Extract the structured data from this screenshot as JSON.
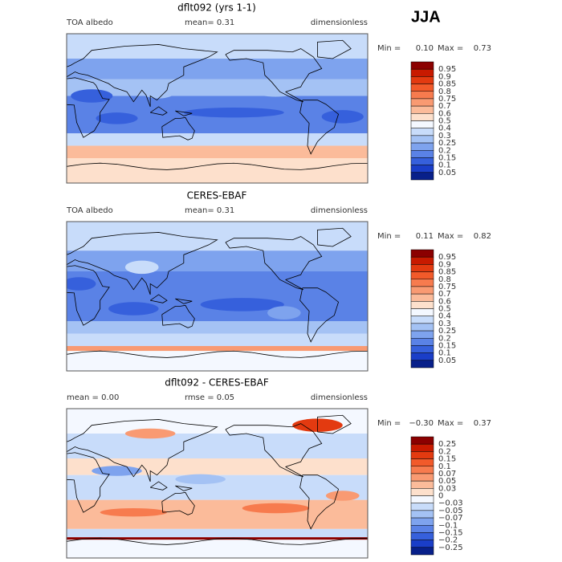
{
  "season": "JJA",
  "panels": [
    {
      "title": "dflt092 (yrs 1-1)",
      "left": "TOA albedo",
      "center": "mean=   0.31",
      "right": "dimensionless",
      "min_label": "Min =",
      "min": "0.10",
      "max_label": "Max =",
      "max": "0.73",
      "levels": [
        "0.95",
        "0.9",
        "0.85",
        "0.8",
        "0.75",
        "0.7",
        "0.6",
        "0.5",
        "0.4",
        "0.3",
        "0.25",
        "0.2",
        "0.15",
        "0.1",
        "0.05"
      ],
      "colors": [
        "#8b0000",
        "#c81a00",
        "#e33a10",
        "#f25a2a",
        "#f77b4e",
        "#f99a72",
        "#fbbb9a",
        "#fde0cc",
        "#f4f8ff",
        "#c8dcfa",
        "#a4c2f4",
        "#7ea3ee",
        "#5a82e6",
        "#3660dc",
        "#1a3ec8",
        "#08208a"
      ]
    },
    {
      "title": "CERES-EBAF",
      "left": "TOA albedo",
      "center": "mean=   0.31",
      "right": "dimensionless",
      "min_label": "Min =",
      "min": "0.11",
      "max_label": "Max =",
      "max": "0.82",
      "levels": [
        "0.95",
        "0.9",
        "0.85",
        "0.8",
        "0.75",
        "0.7",
        "0.6",
        "0.5",
        "0.4",
        "0.3",
        "0.25",
        "0.2",
        "0.15",
        "0.1",
        "0.05"
      ],
      "colors": [
        "#8b0000",
        "#c81a00",
        "#e33a10",
        "#f25a2a",
        "#f77b4e",
        "#f99a72",
        "#fbbb9a",
        "#fde0cc",
        "#f4f8ff",
        "#c8dcfa",
        "#a4c2f4",
        "#7ea3ee",
        "#5a82e6",
        "#3660dc",
        "#1a3ec8",
        "#08208a"
      ]
    },
    {
      "title": "dflt092 - CERES-EBAF",
      "left": "mean =   0.00",
      "center": "rmse =   0.05",
      "right": "dimensionless",
      "min_label": "Min =",
      "min": "−0.30",
      "max_label": "Max =",
      "max": "0.37",
      "levels": [
        "0.25",
        "0.2",
        "0.15",
        "0.1",
        "0.07",
        "0.05",
        "0.03",
        "0",
        "−0.03",
        "−0.05",
        "−0.07",
        "−0.1",
        "−0.15",
        "−0.2",
        "−0.25"
      ],
      "colors": [
        "#8b0000",
        "#c81a00",
        "#e33a10",
        "#f25a2a",
        "#f77b4e",
        "#f99a72",
        "#fbbb9a",
        "#fde0cc",
        "#f4f8ff",
        "#c8dcfa",
        "#a4c2f4",
        "#7ea3ee",
        "#5a82e6",
        "#3660dc",
        "#1a3ec8",
        "#08208a"
      ]
    }
  ]
}
